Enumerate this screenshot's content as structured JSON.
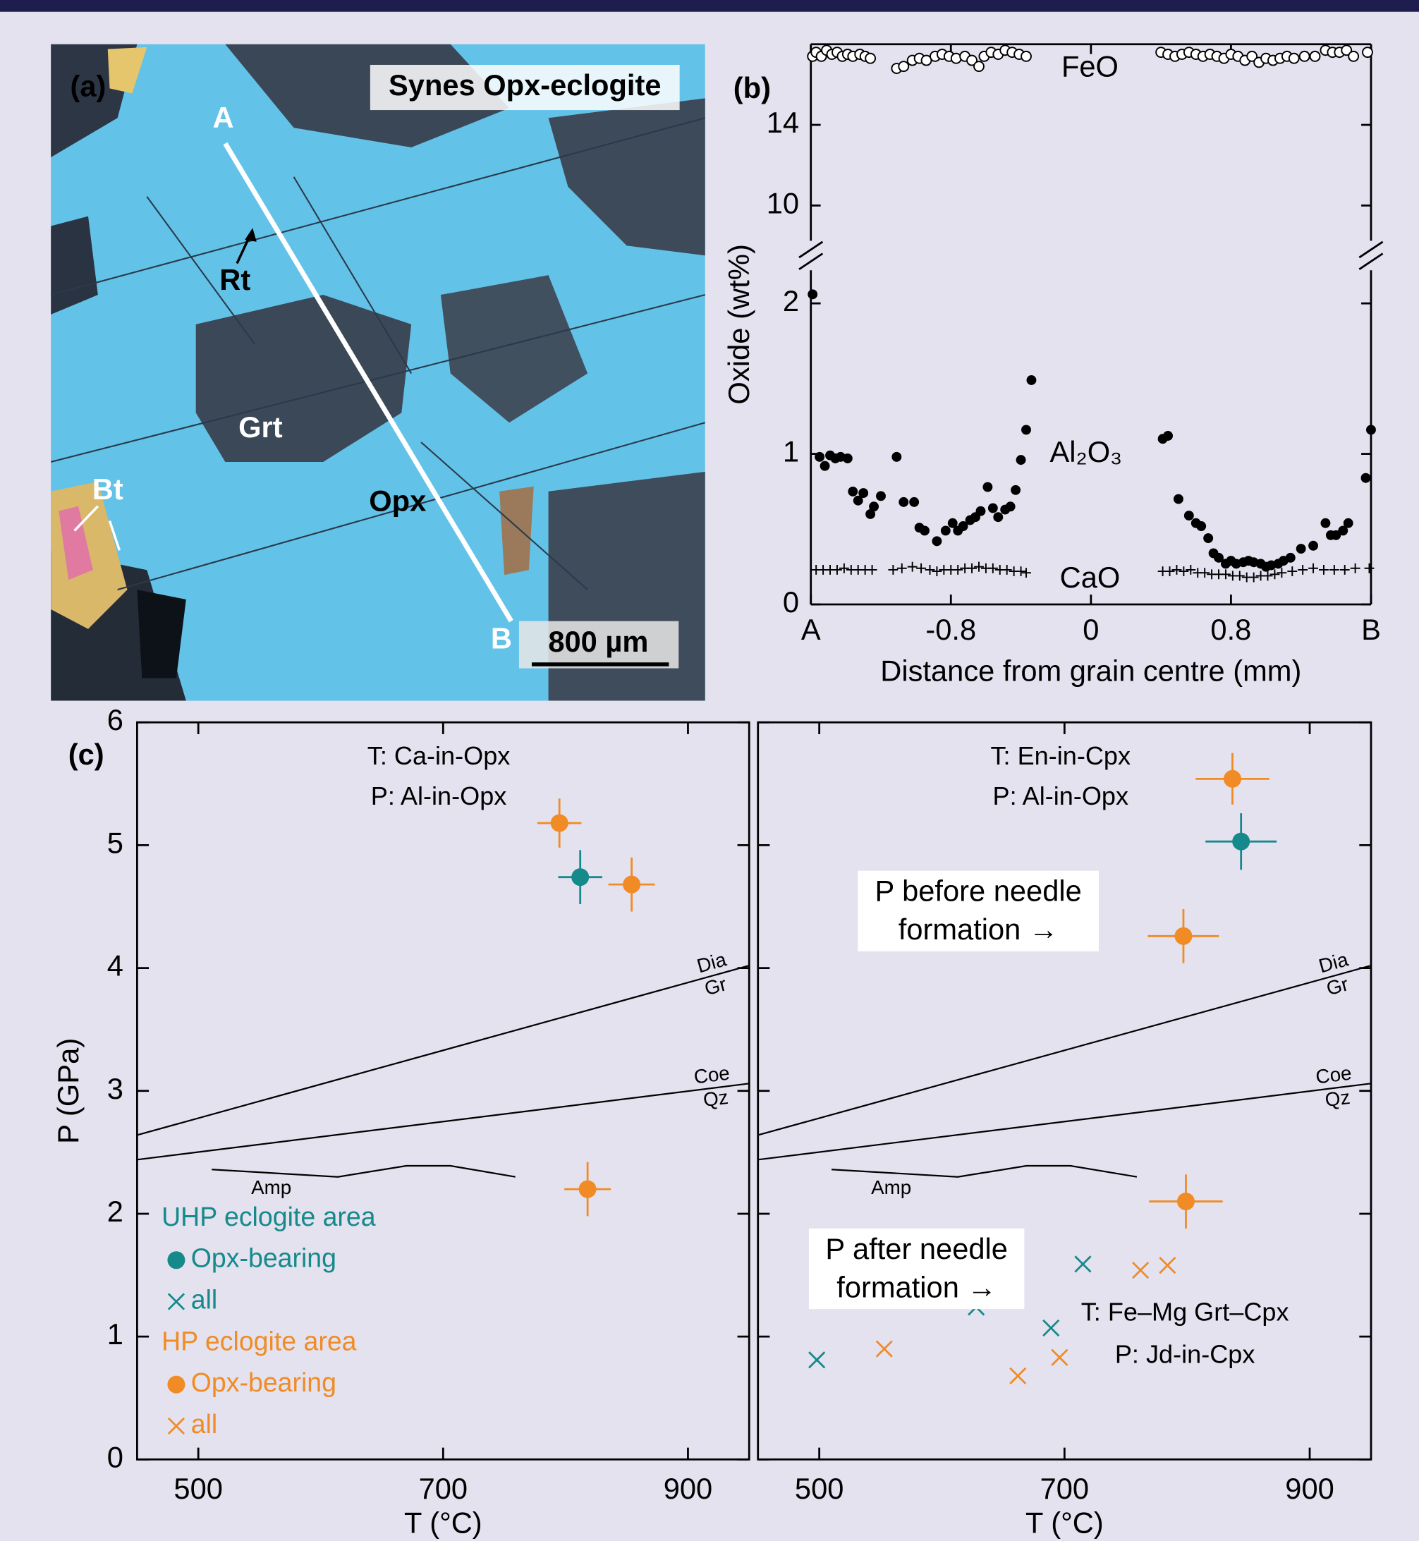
{
  "panel_a": {
    "label": "(a)",
    "title": "Synes Opx-eclogite",
    "points": [
      "A",
      "B"
    ],
    "minerals": [
      "Rt",
      "Grt",
      "Opx",
      "Bt"
    ],
    "scale_bar": "800 µm"
  },
  "chart_data": [
    {
      "type": "scatter",
      "label": "(b)",
      "xlabel": "Distance from grain centre (mm)",
      "ylabel": "Oxide (wt%)",
      "xlim": [
        -1.6,
        1.6
      ],
      "xticks": [
        {
          "value": -1.6,
          "label": "A"
        },
        -0.8,
        0,
        0.8,
        {
          "value": 1.6,
          "label": "B"
        }
      ],
      "ylim": [
        0,
        2.22
      ],
      "yticks": [
        0,
        1,
        2
      ],
      "axis_break": true,
      "ylim_upper": [
        8.25,
        18
      ],
      "yticks_upper": [
        10,
        14
      ],
      "series": [
        {
          "name": "FeO",
          "marker": "open-circle",
          "color": "#000000",
          "axis": "upper",
          "x": [
            -1.59,
            -1.57,
            -1.54,
            -1.51,
            -1.48,
            -1.45,
            -1.42,
            -1.39,
            -1.36,
            -1.32,
            -1.29,
            -1.26,
            -1.11,
            -1.07,
            -1.02,
            -0.98,
            -0.94,
            -0.89,
            -0.85,
            -0.81,
            -0.77,
            -0.72,
            -0.68,
            -0.64,
            -0.61,
            -0.57,
            -0.53,
            -0.49,
            -0.45,
            -0.41,
            -0.37,
            0.4,
            0.44,
            0.48,
            0.52,
            0.56,
            0.6,
            0.64,
            0.68,
            0.72,
            0.76,
            0.8,
            0.84,
            0.88,
            0.92,
            0.96,
            1.0,
            1.04,
            1.08,
            1.12,
            1.16,
            1.22,
            1.28,
            1.34,
            1.38,
            1.42,
            1.46,
            1.5,
            1.58
          ],
          "values": [
            17.4,
            17.6,
            17.4,
            17.7,
            17.5,
            17.6,
            17.4,
            17.5,
            17.4,
            17.5,
            17.4,
            17.3,
            16.8,
            16.9,
            17.2,
            17.3,
            17.2,
            17.4,
            17.5,
            17.4,
            17.3,
            17.4,
            17.2,
            16.9,
            17.4,
            17.6,
            17.5,
            17.7,
            17.6,
            17.5,
            17.4,
            17.6,
            17.5,
            17.4,
            17.5,
            17.6,
            17.5,
            17.4,
            17.5,
            17.4,
            17.3,
            17.5,
            17.4,
            17.2,
            17.4,
            17.1,
            17.3,
            17.2,
            17.3,
            17.4,
            17.3,
            17.4,
            17.4,
            17.7,
            17.6,
            17.6,
            17.7,
            17.4,
            17.6
          ]
        },
        {
          "name": "Al₂O₃",
          "marker": "dot",
          "color": "#000000",
          "x": [
            -1.59,
            -1.55,
            -1.52,
            -1.49,
            -1.46,
            -1.43,
            -1.39,
            -1.36,
            -1.33,
            -1.3,
            -1.26,
            -1.24,
            -1.2,
            -1.11,
            -1.07,
            -1.01,
            -0.98,
            -0.95,
            -0.88,
            -0.83,
            -0.79,
            -0.76,
            -0.73,
            -0.69,
            -0.66,
            -0.63,
            -0.59,
            -0.56,
            -0.53,
            -0.49,
            -0.46,
            -0.43,
            -0.4,
            -0.37,
            -0.34,
            0.41,
            0.44,
            0.5,
            0.56,
            0.6,
            0.63,
            0.67,
            0.7,
            0.73,
            0.77,
            0.8,
            0.83,
            0.87,
            0.9,
            0.93,
            0.97,
            1.0,
            1.03,
            1.07,
            1.1,
            1.14,
            1.2,
            1.27,
            1.34,
            1.37,
            1.4,
            1.44,
            1.47,
            1.57,
            1.6
          ],
          "values": [
            2.06,
            0.98,
            0.92,
            0.99,
            0.97,
            0.98,
            0.97,
            0.75,
            0.69,
            0.74,
            0.6,
            0.65,
            0.72,
            0.98,
            0.68,
            0.68,
            0.51,
            0.49,
            0.42,
            0.49,
            0.54,
            0.49,
            0.52,
            0.56,
            0.58,
            0.62,
            0.78,
            0.64,
            0.58,
            0.63,
            0.65,
            0.76,
            0.96,
            1.16,
            1.49,
            1.1,
            1.12,
            0.7,
            0.59,
            0.54,
            0.52,
            0.44,
            0.34,
            0.31,
            0.27,
            0.29,
            0.27,
            0.28,
            0.29,
            0.28,
            0.27,
            0.25,
            0.26,
            0.27,
            0.29,
            0.31,
            0.37,
            0.39,
            0.54,
            0.46,
            0.46,
            0.49,
            0.54,
            0.84,
            1.16
          ]
        },
        {
          "name": "CaO",
          "marker": "plus",
          "color": "#000000",
          "x": [
            -1.57,
            -1.53,
            -1.49,
            -1.45,
            -1.41,
            -1.37,
            -1.33,
            -1.29,
            -1.25,
            -1.13,
            -1.08,
            -1.02,
            -0.97,
            -0.92,
            -0.88,
            -0.84,
            -0.8,
            -0.76,
            -0.72,
            -0.68,
            -0.64,
            -0.6,
            -0.56,
            -0.52,
            -0.48,
            -0.44,
            -0.4,
            -0.37,
            0.41,
            0.45,
            0.49,
            0.53,
            0.57,
            0.61,
            0.65,
            0.69,
            0.73,
            0.77,
            0.81,
            0.85,
            0.89,
            0.93,
            0.97,
            1.01,
            1.05,
            1.09,
            1.15,
            1.21,
            1.27,
            1.33,
            1.39,
            1.45,
            1.51,
            1.59
          ],
          "values": [
            0.23,
            0.23,
            0.23,
            0.23,
            0.24,
            0.23,
            0.23,
            0.23,
            0.23,
            0.23,
            0.24,
            0.25,
            0.24,
            0.23,
            0.22,
            0.23,
            0.23,
            0.23,
            0.24,
            0.24,
            0.25,
            0.24,
            0.24,
            0.23,
            0.23,
            0.22,
            0.22,
            0.21,
            0.22,
            0.22,
            0.23,
            0.22,
            0.23,
            0.21,
            0.21,
            0.2,
            0.2,
            0.2,
            0.19,
            0.19,
            0.18,
            0.18,
            0.19,
            0.19,
            0.2,
            0.21,
            0.22,
            0.23,
            0.24,
            0.23,
            0.23,
            0.23,
            0.24,
            0.24
          ]
        }
      ]
    },
    {
      "type": "scatter",
      "label": "(c)",
      "xlabel": "T (°C)",
      "ylabel": "P (GPa)",
      "xlim": [
        450,
        950
      ],
      "xticks": [
        500,
        700,
        900
      ],
      "ylim": [
        0,
        6
      ],
      "yticks": [
        0,
        1,
        2,
        3,
        4,
        5,
        6
      ],
      "annotations": [
        "T: Ca-in-Opx",
        "P: Al-in-Opx"
      ],
      "reaction_lines": [
        {
          "label_top": "Dia",
          "label_bottom": "Gr",
          "x": [
            450,
            950
          ],
          "values": [
            2.64,
            4.02
          ]
        },
        {
          "label_top": "Coe",
          "label_bottom": "Qz",
          "x": [
            450,
            950
          ],
          "values": [
            2.44,
            3.06
          ]
        },
        {
          "label": "Amp",
          "x": [
            511,
            614,
            670,
            706,
            759
          ],
          "values": [
            2.36,
            2.3,
            2.39,
            2.39,
            2.3
          ]
        }
      ],
      "legend": true,
      "groups": [
        {
          "name": "UHP eclogite area",
          "color": "#16898b",
          "series": [
            {
              "name": "Opx-bearing",
              "marker": "dot",
              "x": [
                812
              ],
              "values": [
                4.74
              ],
              "xerr": [
                18
              ],
              "yerr": [
                0.22
              ]
            },
            {
              "name": "all",
              "marker": "cross",
              "x": [],
              "values": []
            }
          ]
        },
        {
          "name": "HP eclogite area",
          "color": "#f18b25",
          "series": [
            {
              "name": "Opx-bearing",
              "marker": "dot",
              "x": [
                795,
                854,
                818
              ],
              "values": [
                5.18,
                4.68,
                2.2
              ],
              "xerr": [
                18,
                19,
                19
              ],
              "yerr": [
                0.2,
                0.22,
                0.22
              ]
            },
            {
              "name": "all",
              "marker": "cross",
              "x": [],
              "values": []
            }
          ]
        }
      ]
    },
    {
      "type": "scatter",
      "xlabel": "T (°C)",
      "xlim": [
        450,
        950
      ],
      "xticks": [
        500,
        700,
        900
      ],
      "ylim": [
        0,
        6
      ],
      "yticks": [
        0,
        1,
        2,
        3,
        4,
        5,
        6
      ],
      "ytick_labels": false,
      "annotations": [
        "T: En-in-Cpx",
        "P: Al-in-Opx",
        "T: Fe–Mg Grt–Cpx",
        "P: Jd-in-Cpx"
      ],
      "boxed_notes": [
        [
          "P before needle",
          "formation →"
        ],
        [
          "P after needle",
          "formation →"
        ]
      ],
      "reaction_lines": [
        {
          "label_top": "Dia",
          "label_bottom": "Gr",
          "x": [
            450,
            950
          ],
          "values": [
            2.64,
            4.02
          ]
        },
        {
          "label_top": "Coe",
          "label_bottom": "Qz",
          "x": [
            450,
            950
          ],
          "values": [
            2.44,
            3.06
          ]
        },
        {
          "label": "Amp",
          "x": [
            510,
            613,
            669,
            705,
            759
          ],
          "values": [
            2.36,
            2.3,
            2.39,
            2.39,
            2.3
          ]
        }
      ],
      "groups": [
        {
          "color": "#16898b",
          "series": [
            {
              "marker": "dot",
              "x": [
                844
              ],
              "values": [
                5.03
              ],
              "xerr": [
                29
              ],
              "yerr": [
                0.23
              ]
            },
            {
              "marker": "cross",
              "x": [
                498,
                628,
                689,
                715
              ],
              "values": [
                0.81,
                1.24,
                1.07,
                1.59
              ]
            }
          ]
        },
        {
          "color": "#f18b25",
          "series": [
            {
              "marker": "dot",
              "x": [
                837,
                797,
                799
              ],
              "values": [
                5.54,
                4.26,
                2.1
              ],
              "xerr": [
                30,
                29,
                30
              ],
              "yerr": [
                0.21,
                0.22,
                0.22
              ]
            },
            {
              "marker": "cross",
              "x": [
                553,
                662,
                696,
                762,
                784
              ],
              "values": [
                0.9,
                0.68,
                0.83,
                1.54,
                1.58
              ]
            }
          ]
        }
      ]
    }
  ]
}
